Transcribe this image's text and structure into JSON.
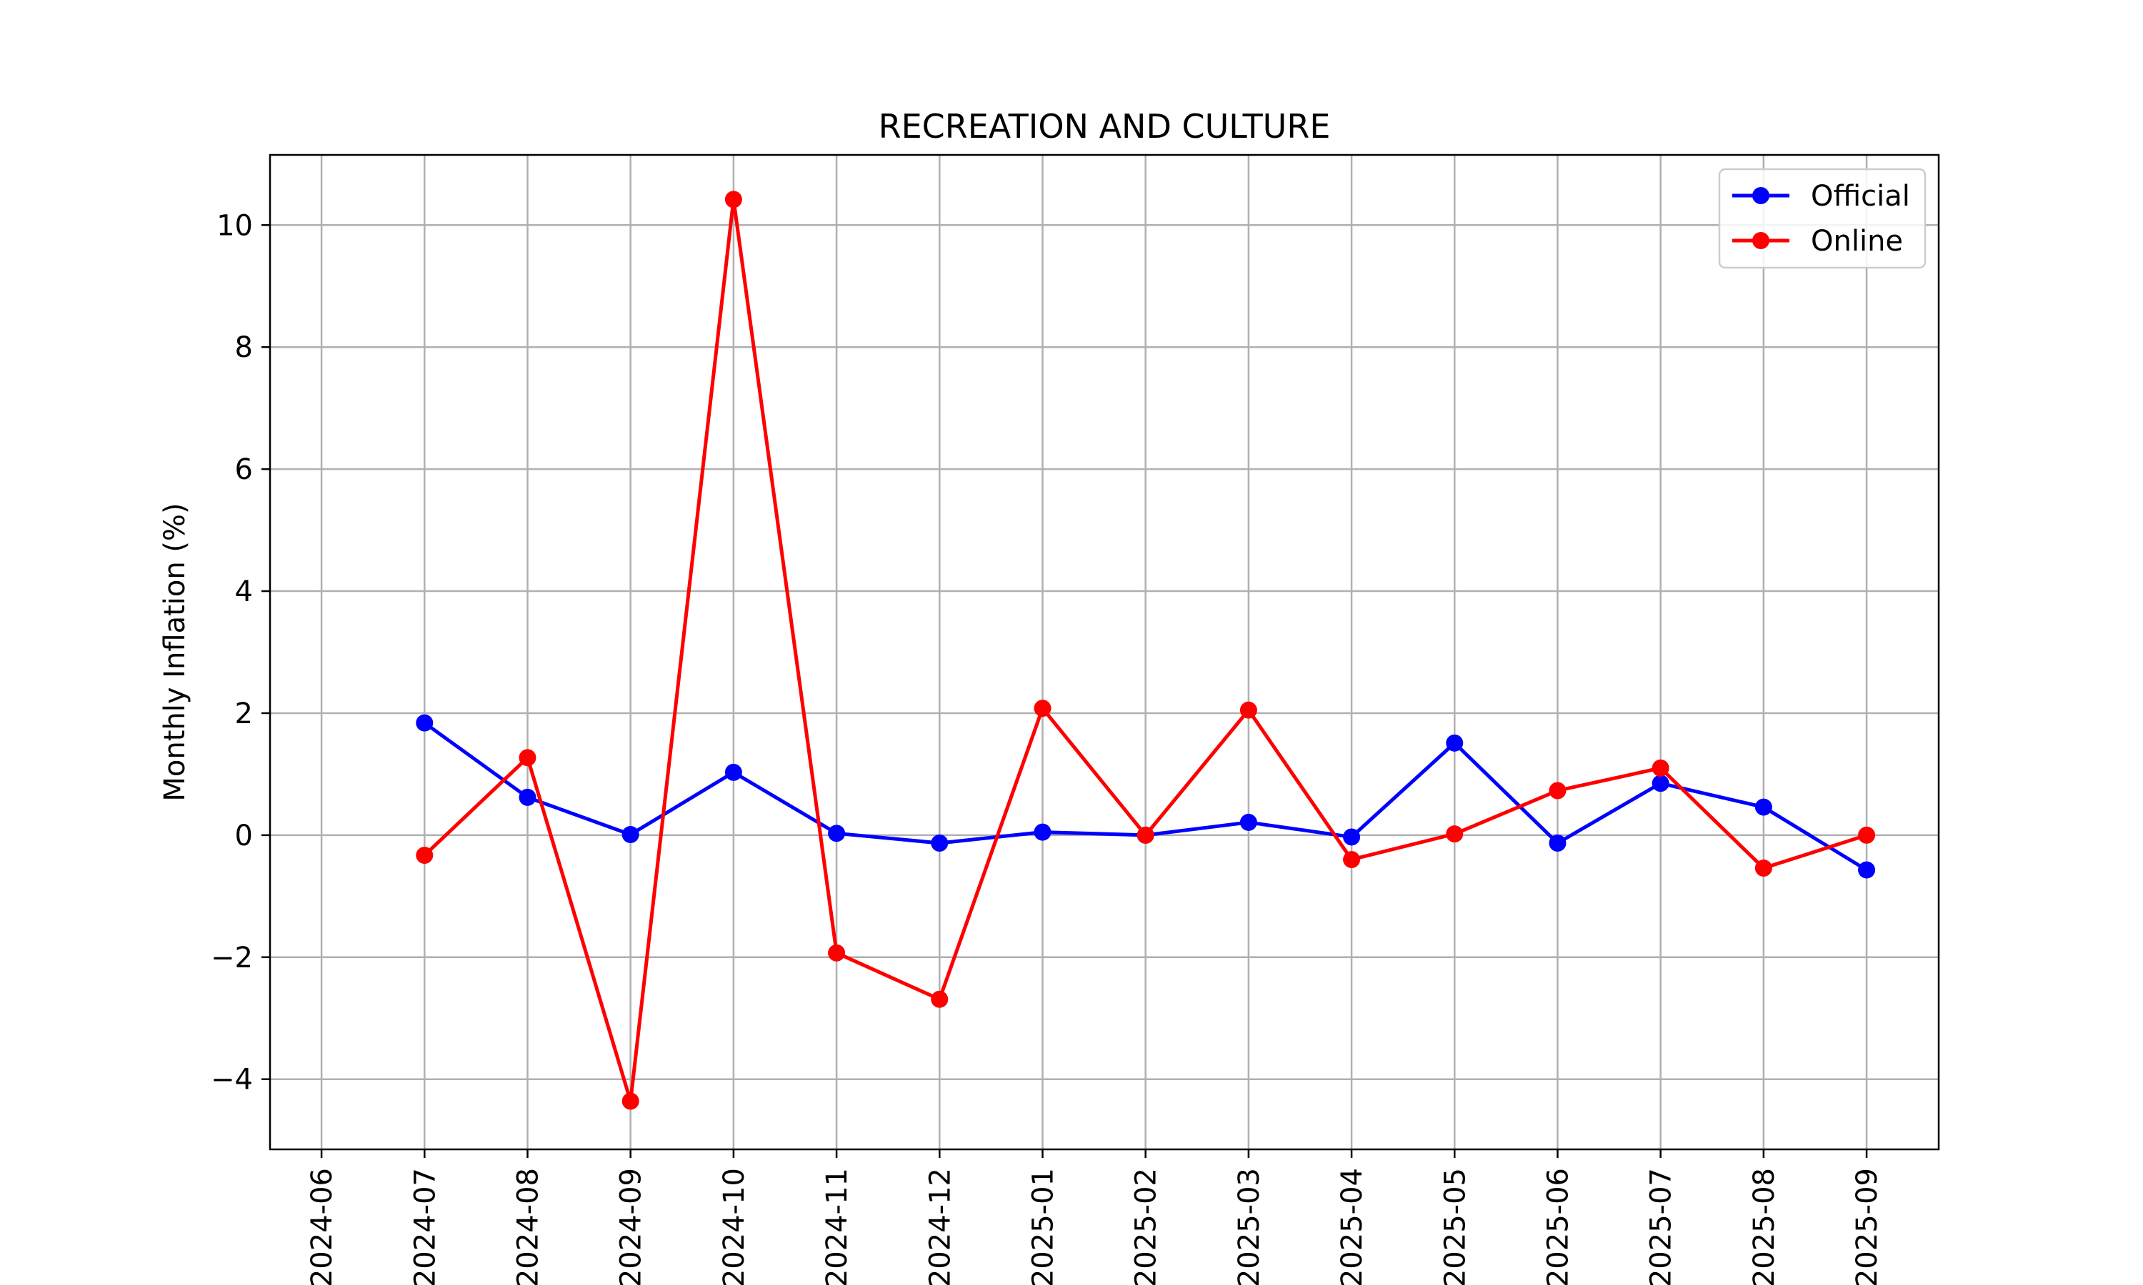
{
  "chart_data": {
    "type": "line",
    "title": "RECREATION AND CULTURE",
    "xlabel": "",
    "ylabel": "Monthly Inflation (%)",
    "x": [
      "2024-07",
      "2024-08",
      "2024-09",
      "2024-10",
      "2024-11",
      "2024-12",
      "2025-01",
      "2025-02",
      "2025-03",
      "2025-04",
      "2025-05",
      "2025-06",
      "2025-07",
      "2025-08",
      "2025-09"
    ],
    "x_ticks": [
      "2024-06",
      "2024-07",
      "2024-08",
      "2024-09",
      "2024-10",
      "2024-11",
      "2024-12",
      "2025-01",
      "2025-02",
      "2025-03",
      "2025-04",
      "2025-05",
      "2025-06",
      "2025-07",
      "2025-08",
      "2025-09"
    ],
    "y_ticks": [
      -4,
      -2,
      0,
      2,
      4,
      6,
      8,
      10
    ],
    "y_tick_labels": [
      "−4",
      "−2",
      "0",
      "2",
      "4",
      "6",
      "8",
      "10"
    ],
    "ylim": [
      -5.15,
      11.15
    ],
    "grid": true,
    "legend_position": "top-right",
    "series": [
      {
        "name": "Official",
        "color": "#0000ff",
        "values": [
          1.84,
          0.62,
          0.01,
          1.03,
          0.03,
          -0.13,
          0.05,
          0.0,
          0.21,
          -0.03,
          1.51,
          -0.13,
          0.85,
          0.46,
          -0.57
        ]
      },
      {
        "name": "Online",
        "color": "#ff0000",
        "values": [
          -0.33,
          1.27,
          -4.36,
          10.42,
          -1.93,
          -2.69,
          2.08,
          0.0,
          2.05,
          -0.4,
          0.02,
          0.73,
          1.1,
          -0.54,
          0.0
        ]
      }
    ]
  }
}
